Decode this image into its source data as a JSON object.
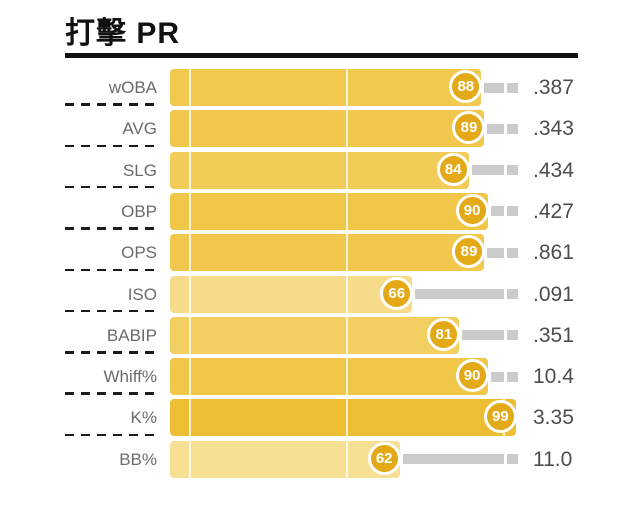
{
  "title": "打擊 PR",
  "colors": {
    "badge_fill": "#e4a916",
    "badge_ring": "#ffffff",
    "track_gray": "#cbcbcb",
    "label_gray": "#6b6b6b",
    "value_gray": "#4d4d4d",
    "title_black": "#111111"
  },
  "chart_data": {
    "type": "bar",
    "orientation": "horizontal",
    "title": "打擊 PR",
    "xlabel": "",
    "ylabel": "",
    "scale": {
      "min": 0,
      "max": 100,
      "gridlines": [
        0,
        50,
        100
      ],
      "grid": "on"
    },
    "legend": "none",
    "rows": [
      {
        "label": "wOBA",
        "percentile": 88,
        "value": ".387",
        "bar_color": "#f1c94f"
      },
      {
        "label": "AVG",
        "percentile": 89,
        "value": ".343",
        "bar_color": "#f1c84d"
      },
      {
        "label": "SLG",
        "percentile": 84,
        "value": ".434",
        "bar_color": "#f2cc59"
      },
      {
        "label": "OBP",
        "percentile": 90,
        "value": ".427",
        "bar_color": "#f0c749"
      },
      {
        "label": "OPS",
        "percentile": 89,
        "value": ".861",
        "bar_color": "#f1c84d"
      },
      {
        "label": "ISO",
        "percentile": 66,
        "value": ".091",
        "bar_color": "#f6db8b"
      },
      {
        "label": "BABIP",
        "percentile": 81,
        "value": ".351",
        "bar_color": "#f3cf62"
      },
      {
        "label": "Whiff%",
        "percentile": 90,
        "value": "10.4",
        "bar_color": "#f0c749"
      },
      {
        "label": "K%",
        "percentile": 99,
        "value": "3.35",
        "bar_color": "#edbd33"
      },
      {
        "label": "BB%",
        "percentile": 62,
        "value": "11.0",
        "bar_color": "#f7df94"
      }
    ]
  }
}
